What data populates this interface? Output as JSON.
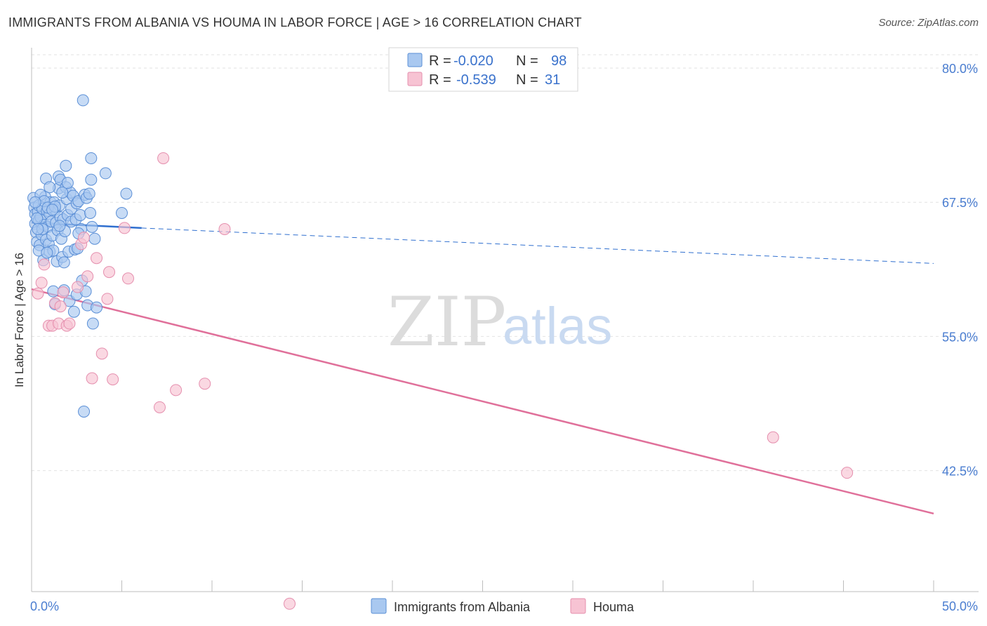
{
  "title": "IMMIGRANTS FROM ALBANIA VS HOUMA IN LABOR FORCE | AGE > 16 CORRELATION CHART",
  "source": "Source: ZipAtlas.com",
  "watermark": {
    "part1": "ZIP",
    "part2": "atlas"
  },
  "colors": {
    "blue_fill": "#a9c8f0",
    "blue_stroke": "#5b8fd6",
    "blue_line": "#2f6fcf",
    "pink_fill": "#f7c3d3",
    "pink_stroke": "#e58fae",
    "pink_line": "#e0709a",
    "grid": "#e2e2e2",
    "tick_label": "#4a7dd0"
  },
  "stats_legend": [
    {
      "r_label": "R =",
      "r_value": "-0.020",
      "n_label": "N =",
      "n_value": "98"
    },
    {
      "r_label": "R =",
      "r_value": "-0.539",
      "n_label": "N =",
      "n_value": "31"
    }
  ],
  "chart_data": {
    "type": "scatter",
    "title": "IMMIGRANTS FROM ALBANIA VS HOUMA IN LABOR FORCE | AGE > 16 CORRELATION CHART",
    "xlabel": "",
    "ylabel": "In Labor Force | Age > 16",
    "xlim": [
      0,
      50
    ],
    "ylim": [
      30.0,
      81.5
    ],
    "x_tick_labels": [
      {
        "value": 0,
        "label": "0.0%"
      },
      {
        "value": 50,
        "label": "50.0%"
      }
    ],
    "y_ticks": [
      {
        "value": 80.0,
        "label": "80.0%"
      },
      {
        "value": 67.5,
        "label": "67.5%"
      },
      {
        "value": 55.0,
        "label": "55.0%"
      },
      {
        "value": 42.5,
        "label": "42.5%"
      }
    ],
    "grid": true,
    "legend_position": "bottom-center",
    "series": [
      {
        "name": "Immigrants from Albania",
        "color": "#a9c8f0",
        "trend": {
          "x": [
            0,
            6.1
          ],
          "y": [
            65.6,
            65.1
          ],
          "extended_x": [
            6.1,
            50
          ],
          "extended_y": [
            65.1,
            61.8
          ]
        },
        "points": [
          [
            0.1,
            67.9
          ],
          [
            0.15,
            67.0
          ],
          [
            0.2,
            66.4
          ],
          [
            0.2,
            65.5
          ],
          [
            0.25,
            64.7
          ],
          [
            0.3,
            63.8
          ],
          [
            0.35,
            66.6
          ],
          [
            0.4,
            65.8
          ],
          [
            0.4,
            67.2
          ],
          [
            0.45,
            63.5
          ],
          [
            0.5,
            66.1
          ],
          [
            0.55,
            64.5
          ],
          [
            0.6,
            66.9
          ],
          [
            0.65,
            62.1
          ],
          [
            0.7,
            65.4
          ],
          [
            0.75,
            68.0
          ],
          [
            0.8,
            64.0
          ],
          [
            0.8,
            69.7
          ],
          [
            0.85,
            66.7
          ],
          [
            0.9,
            65.2
          ],
          [
            0.95,
            63.6
          ],
          [
            1.0,
            66.4
          ],
          [
            1.0,
            62.9
          ],
          [
            1.05,
            67.5
          ],
          [
            1.1,
            65.7
          ],
          [
            1.15,
            64.4
          ],
          [
            1.2,
            59.2
          ],
          [
            1.2,
            63.0
          ],
          [
            1.25,
            67.5
          ],
          [
            1.3,
            66.8
          ],
          [
            1.3,
            58.0
          ],
          [
            1.35,
            65.6
          ],
          [
            1.4,
            62.0
          ],
          [
            1.45,
            64.9
          ],
          [
            1.5,
            69.9
          ],
          [
            1.5,
            68.8
          ],
          [
            1.55,
            67.2
          ],
          [
            1.6,
            69.6
          ],
          [
            1.6,
            66.1
          ],
          [
            1.65,
            64.1
          ],
          [
            1.7,
            62.4
          ],
          [
            1.75,
            65.9
          ],
          [
            1.8,
            59.3
          ],
          [
            1.8,
            61.9
          ],
          [
            1.85,
            64.8
          ],
          [
            1.9,
            68.9
          ],
          [
            1.9,
            70.9
          ],
          [
            1.95,
            67.8
          ],
          [
            2.0,
            66.3
          ],
          [
            2.05,
            62.9
          ],
          [
            2.1,
            58.3
          ],
          [
            2.15,
            68.4
          ],
          [
            2.2,
            66.9
          ],
          [
            2.2,
            65.7
          ],
          [
            2.3,
            68.1
          ],
          [
            2.35,
            57.3
          ],
          [
            2.4,
            63.1
          ],
          [
            2.45,
            65.9
          ],
          [
            2.5,
            67.4
          ],
          [
            2.5,
            58.9
          ],
          [
            2.55,
            63.2
          ],
          [
            2.6,
            67.6
          ],
          [
            2.7,
            66.3
          ],
          [
            2.75,
            65.0
          ],
          [
            2.8,
            60.2
          ],
          [
            2.85,
            77.0
          ],
          [
            2.9,
            48.0
          ],
          [
            2.95,
            68.2
          ],
          [
            3.0,
            59.2
          ],
          [
            3.05,
            67.9
          ],
          [
            3.1,
            57.9
          ],
          [
            3.2,
            68.3
          ],
          [
            3.25,
            66.5
          ],
          [
            3.3,
            69.6
          ],
          [
            3.3,
            71.6
          ],
          [
            3.35,
            65.2
          ],
          [
            3.4,
            56.2
          ],
          [
            3.5,
            64.1
          ],
          [
            3.6,
            57.7
          ],
          [
            4.1,
            70.2
          ],
          [
            5.0,
            66.5
          ],
          [
            5.25,
            68.3
          ],
          [
            0.3,
            66.0
          ],
          [
            0.5,
            68.2
          ],
          [
            0.7,
            67.6
          ],
          [
            1.0,
            68.9
          ],
          [
            0.2,
            67.5
          ],
          [
            0.9,
            67.0
          ],
          [
            1.3,
            67.1
          ],
          [
            0.6,
            65.0
          ],
          [
            1.7,
            68.4
          ],
          [
            2.0,
            69.3
          ],
          [
            0.4,
            63.0
          ],
          [
            1.15,
            66.8
          ],
          [
            2.6,
            64.6
          ],
          [
            0.85,
            62.8
          ],
          [
            1.55,
            65.3
          ],
          [
            0.35,
            65.0
          ]
        ]
      },
      {
        "name": "Houma",
        "color": "#f7c3d3",
        "trend": {
          "x": [
            0,
            50
          ],
          "y": [
            59.4,
            38.5
          ]
        },
        "points": [
          [
            0.35,
            59.0
          ],
          [
            0.55,
            60.0
          ],
          [
            0.7,
            61.7
          ],
          [
            0.95,
            56.0
          ],
          [
            1.15,
            56.0
          ],
          [
            1.3,
            58.1
          ],
          [
            1.5,
            56.2
          ],
          [
            1.6,
            57.8
          ],
          [
            1.75,
            59.1
          ],
          [
            1.95,
            56.0
          ],
          [
            2.1,
            56.2
          ],
          [
            2.55,
            59.6
          ],
          [
            2.75,
            63.6
          ],
          [
            2.9,
            64.2
          ],
          [
            3.1,
            60.6
          ],
          [
            3.35,
            51.1
          ],
          [
            3.6,
            62.3
          ],
          [
            3.9,
            53.4
          ],
          [
            4.2,
            58.5
          ],
          [
            4.3,
            61.0
          ],
          [
            4.5,
            51.0
          ],
          [
            5.15,
            65.1
          ],
          [
            5.35,
            60.4
          ],
          [
            7.1,
            48.4
          ],
          [
            7.3,
            71.6
          ],
          [
            8.0,
            50.0
          ],
          [
            9.6,
            50.6
          ],
          [
            10.7,
            65.0
          ],
          [
            14.3,
            30.1
          ],
          [
            41.1,
            45.6
          ],
          [
            45.2,
            42.3
          ]
        ]
      }
    ]
  }
}
